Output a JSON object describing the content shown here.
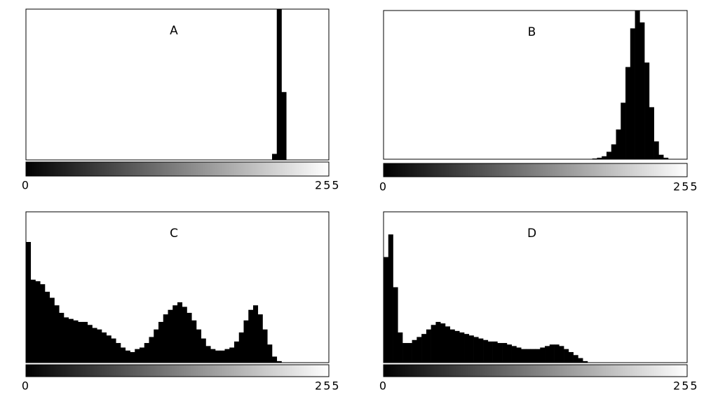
{
  "chart_data": [
    {
      "type": "histogram",
      "title": "A",
      "color": "#000000",
      "xlim": [
        0,
        256
      ],
      "xticks": [
        0,
        255
      ],
      "ylim": [
        0,
        100
      ],
      "bins": [
        0,
        4,
        8,
        12,
        16,
        20,
        24,
        28,
        32,
        36,
        40,
        44,
        48,
        52,
        56,
        60,
        64,
        68,
        72,
        76,
        80,
        84,
        88,
        92,
        96,
        100,
        104,
        108,
        112,
        116,
        120,
        124,
        128,
        132,
        136,
        140,
        144,
        148,
        152,
        156,
        160,
        164,
        168,
        172,
        176,
        180,
        184,
        188,
        192,
        196,
        200,
        204,
        208,
        212,
        216,
        220,
        224,
        228,
        232,
        236,
        240,
        244,
        248,
        252,
        256
      ],
      "values": [
        0,
        0,
        0,
        0,
        0,
        0,
        0,
        0,
        0,
        0,
        0,
        0,
        0,
        0,
        0,
        0,
        0,
        0,
        0,
        0,
        0,
        0,
        0,
        0,
        0,
        0,
        0,
        0,
        0,
        0,
        0,
        0,
        0,
        0,
        0,
        0,
        0,
        0,
        0,
        0,
        0,
        0,
        0,
        0,
        0,
        0,
        0,
        0,
        0,
        0,
        0,
        0,
        4,
        100,
        45,
        0,
        0,
        0,
        0,
        0,
        0,
        0,
        0,
        0
      ]
    },
    {
      "type": "histogram",
      "title": "B",
      "color": "#000000",
      "xlim": [
        0,
        256
      ],
      "xticks": [
        0,
        255
      ],
      "ylim": [
        0,
        100
      ],
      "bins": [
        0,
        4,
        8,
        12,
        16,
        20,
        24,
        28,
        32,
        36,
        40,
        44,
        48,
        52,
        56,
        60,
        64,
        68,
        72,
        76,
        80,
        84,
        88,
        92,
        96,
        100,
        104,
        108,
        112,
        116,
        120,
        124,
        128,
        132,
        136,
        140,
        144,
        148,
        152,
        156,
        160,
        164,
        168,
        172,
        176,
        180,
        184,
        188,
        192,
        196,
        200,
        204,
        208,
        212,
        216,
        220,
        224,
        228,
        232,
        236,
        240,
        244,
        248,
        252,
        256
      ],
      "values": [
        0,
        0,
        0,
        0,
        0,
        0,
        0,
        0,
        0,
        0,
        0,
        0,
        0,
        0,
        0,
        0,
        0,
        0,
        0,
        0,
        0,
        0,
        0,
        0,
        0,
        0,
        0,
        0,
        0,
        0,
        0,
        0,
        0,
        0,
        0,
        0,
        0,
        0,
        0,
        0,
        0,
        0,
        0,
        0,
        0.5,
        1,
        2,
        5,
        10,
        20,
        38,
        62,
        88,
        100,
        92,
        65,
        35,
        12,
        3,
        1,
        0,
        0,
        0,
        0
      ]
    },
    {
      "type": "histogram",
      "title": "C",
      "color": "#000000",
      "xlim": [
        0,
        256
      ],
      "xticks": [
        0,
        255
      ],
      "ylim": [
        0,
        100
      ],
      "bins": [
        0,
        4,
        8,
        12,
        16,
        20,
        24,
        28,
        32,
        36,
        40,
        44,
        48,
        52,
        56,
        60,
        64,
        68,
        72,
        76,
        80,
        84,
        88,
        92,
        96,
        100,
        104,
        108,
        112,
        116,
        120,
        124,
        128,
        132,
        136,
        140,
        144,
        148,
        152,
        156,
        160,
        164,
        168,
        172,
        176,
        180,
        184,
        188,
        192,
        196,
        200,
        204,
        208,
        212,
        216,
        220,
        224,
        228,
        232,
        236,
        240,
        244,
        248,
        252,
        256
      ],
      "values": [
        80,
        55,
        54,
        52,
        47,
        43,
        38,
        33,
        30,
        29,
        28,
        27,
        27,
        25,
        23,
        22,
        20,
        18,
        16,
        13,
        10,
        8,
        7,
        9,
        10,
        13,
        17,
        22,
        27,
        32,
        35,
        38,
        40,
        37,
        33,
        28,
        22,
        16,
        11,
        9,
        8,
        8,
        9,
        10,
        14,
        20,
        28,
        35,
        38,
        32,
        22,
        12,
        4,
        1,
        0,
        0,
        0,
        0,
        0,
        0,
        0,
        0,
        0,
        0
      ]
    },
    {
      "type": "histogram",
      "title": "D",
      "color": "#000000",
      "xlim": [
        0,
        256
      ],
      "xticks": [
        0,
        255
      ],
      "ylim": [
        0,
        100
      ],
      "bins": [
        0,
        4,
        8,
        12,
        16,
        20,
        24,
        28,
        32,
        36,
        40,
        44,
        48,
        52,
        56,
        60,
        64,
        68,
        72,
        76,
        80,
        84,
        88,
        92,
        96,
        100,
        104,
        108,
        112,
        116,
        120,
        124,
        128,
        132,
        136,
        140,
        144,
        148,
        152,
        156,
        160,
        164,
        168,
        172,
        176,
        180,
        184,
        188,
        192,
        196,
        200,
        204,
        208,
        212,
        216,
        220,
        224,
        228,
        232,
        236,
        240,
        244,
        248,
        252,
        256
      ],
      "values": [
        70,
        85,
        50,
        20,
        13,
        13,
        15,
        17,
        19,
        22,
        25,
        27,
        26,
        24,
        22,
        21,
        20,
        19,
        18,
        17,
        16,
        15,
        14,
        14,
        13,
        13,
        12,
        11,
        10,
        9,
        9,
        9,
        9,
        10,
        11,
        12,
        12,
        11,
        9,
        7,
        5,
        3,
        1,
        0,
        0,
        0,
        0,
        0,
        0,
        0,
        0,
        0,
        0,
        0,
        0,
        0,
        0,
        0,
        0,
        0,
        0,
        0,
        0,
        0
      ]
    }
  ]
}
